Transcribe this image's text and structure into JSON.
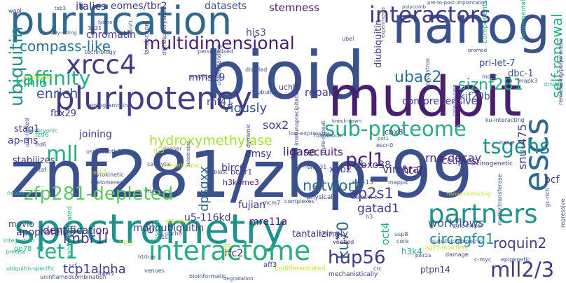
{
  "word_cloud": {
    "colors": {
      "navy": "#3b518b",
      "indigo": "#443983",
      "purple": "#481f70",
      "teal": "#2c718e",
      "blue": "#31688e",
      "cyan": "#21918c",
      "green": "#27ad81",
      "lime": "#5ec962",
      "yellow": "#aadc32",
      "light": "#c8e020",
      "dark": "#440154"
    },
    "words": [
      {
        "text": "znf281/zbp-99",
        "color": "navy"
      },
      {
        "text": "spectrometry",
        "color": "cyan"
      },
      {
        "text": "purification",
        "color": "blue"
      },
      {
        "text": "bioid",
        "color": "navy"
      },
      {
        "text": "mudpit",
        "color": "purple"
      },
      {
        "text": "nanog",
        "color": "navy"
      },
      {
        "text": "pluripotency",
        "color": "indigo"
      },
      {
        "text": "interactome",
        "color": "green"
      },
      {
        "text": "interactors",
        "color": "indigo"
      },
      {
        "text": "xrcc4",
        "color": "indigo"
      },
      {
        "text": "multidimensional",
        "color": "purple"
      },
      {
        "text": "partners",
        "color": "cyan"
      },
      {
        "text": "escs",
        "color": "blue"
      },
      {
        "text": "sub-proteome",
        "color": "green"
      },
      {
        "text": "zfp281-depleted",
        "color": "lime"
      },
      {
        "text": "affinity",
        "color": "green"
      },
      {
        "text": "compass-like",
        "color": "teal"
      },
      {
        "text": "mll",
        "color": "green"
      },
      {
        "text": "network",
        "color": "blue"
      },
      {
        "text": "ap2s1",
        "color": "indigo"
      },
      {
        "text": "mll2/3",
        "color": "indigo"
      },
      {
        "text": "tet1",
        "color": "green"
      },
      {
        "text": "ubiquitin",
        "color": "cyan"
      },
      {
        "text": "ku70",
        "color": "blue"
      },
      {
        "text": "tsgehs",
        "color": "cyan"
      },
      {
        "text": "pcl1",
        "color": "purple"
      },
      {
        "text": "hup56",
        "color": "indigo"
      },
      {
        "text": "hydroxymethylase",
        "color": "yellow"
      },
      {
        "text": "siznf281",
        "color": "green"
      },
      {
        "text": "ubac2",
        "color": "teal"
      },
      {
        "text": "self-renewal",
        "color": "green"
      },
      {
        "text": "circagfg1",
        "color": "cyan"
      },
      {
        "text": "roquin2",
        "color": "indigo"
      },
      {
        "text": "lmbr1l",
        "color": "indigo"
      },
      {
        "text": "tcp1alpha",
        "color": "indigo"
      },
      {
        "text": "gatad1",
        "color": "indigo"
      },
      {
        "text": "dpsgxx",
        "color": "blue"
      },
      {
        "text": "identification",
        "color": "purple"
      },
      {
        "text": "klhl6",
        "color": "green"
      },
      {
        "text": "enrich",
        "color": "navy"
      },
      {
        "text": "mms19",
        "color": "indigo"
      },
      {
        "text": "viously",
        "color": "navy"
      },
      {
        "text": "sox2",
        "color": "indigo"
      },
      {
        "text": "repair",
        "color": "indigo"
      },
      {
        "text": "rna-decay",
        "color": "purple"
      },
      {
        "text": "virotrap",
        "color": "indigo"
      },
      {
        "text": "workflows",
        "color": "navy"
      },
      {
        "text": "comprehensive",
        "color": "indigo"
      },
      {
        "text": "kif20b",
        "color": "navy"
      },
      {
        "text": "diubiquitin",
        "color": "indigo"
      },
      {
        "text": "his3",
        "color": "navy"
      },
      {
        "text": "datasets",
        "color": "navy"
      },
      {
        "text": "stemness",
        "color": "purple"
      },
      {
        "text": "italics",
        "color": "indigo"
      },
      {
        "text": "eomes/tbr2",
        "color": "indigo"
      },
      {
        "text": "chromatin",
        "color": "indigo"
      },
      {
        "text": "rnf41",
        "color": "navy"
      },
      {
        "text": "ligase",
        "color": "purple"
      },
      {
        "text": "recruits",
        "color": "purple"
      },
      {
        "text": "fbxo38",
        "color": "indigo"
      },
      {
        "text": "snu-475",
        "color": "indigo"
      },
      {
        "text": "pcf",
        "color": "indigo"
      },
      {
        "text": "xab2",
        "color": "indigo"
      },
      {
        "text": "emsy",
        "color": "indigo"
      },
      {
        "text": "birc6",
        "color": "indigo"
      },
      {
        "text": "fujian",
        "color": "indigo"
      },
      {
        "text": "mre11a",
        "color": "purple"
      },
      {
        "text": "u5-116kd",
        "color": "indigo"
      },
      {
        "text": "monoubiquitin",
        "color": "indigo"
      },
      {
        "text": "fbx29",
        "color": "indigo"
      },
      {
        "text": "joining",
        "color": "indigo"
      },
      {
        "text": "ap-ms",
        "color": "indigo"
      },
      {
        "text": "stag1",
        "color": "indigo"
      },
      {
        "text": "stabilizes",
        "color": "indigo"
      },
      {
        "text": "movio",
        "color": "navy"
      },
      {
        "text": "apoproteins",
        "color": "indigo"
      },
      {
        "text": "rfc2",
        "color": "purple"
      },
      {
        "text": "ctll",
        "color": "yellow"
      },
      {
        "text": "tantalizingly",
        "color": "indigo"
      },
      {
        "text": "ptpn14",
        "color": "indigo"
      },
      {
        "text": "aff3",
        "color": "indigo"
      },
      {
        "text": "h3k4me3",
        "color": "purple"
      },
      {
        "text": "bcar1",
        "color": "indigo"
      },
      {
        "text": "h3k4",
        "color": "green"
      },
      {
        "text": "oct4",
        "color": "green"
      },
      {
        "text": "uchl3",
        "color": "indigo"
      },
      {
        "text": "cbx8",
        "color": "indigo"
      },
      {
        "text": "ht-2",
        "color": "purple"
      },
      {
        "text": "occupies",
        "color": "indigo"
      },
      {
        "text": "pri-let-7",
        "color": "navy"
      },
      {
        "text": "dbc-1",
        "color": "navy"
      },
      {
        "text": "gp78",
        "color": "green"
      },
      {
        "text": "e3",
        "color": "indigo"
      },
      {
        "text": "ubiquitin-specific",
        "color": "green"
      },
      {
        "text": "hsp90",
        "color": "green"
      },
      {
        "text": "verified",
        "color": "purple"
      },
      {
        "text": "mechanistically",
        "color": "indigo"
      },
      {
        "text": "nanog-interacting",
        "color": "light"
      },
      {
        "text": "wapl",
        "color": "indigo"
      },
      {
        "text": "lysine",
        "color": "indigo"
      },
      {
        "text": "3q21",
        "color": "purple"
      },
      {
        "text": "technology",
        "color": "navy"
      },
      {
        "text": "reprogramming",
        "color": "navy"
      },
      {
        "text": "embryonic",
        "color": "green"
      },
      {
        "text": "replication",
        "color": "navy"
      },
      {
        "text": "telomeres",
        "color": "navy"
      },
      {
        "text": "cytokinetic",
        "color": "navy"
      },
      {
        "text": "integration",
        "color": "green"
      },
      {
        "text": "precise",
        "color": "green"
      },
      {
        "text": "scf",
        "color": "navy"
      },
      {
        "text": "uninflamedcombination",
        "color": "navy"
      },
      {
        "text": "inter2",
        "color": "indigo"
      },
      {
        "text": "venues",
        "color": "navy"
      },
      {
        "text": "bioinformatic",
        "color": "navy"
      },
      {
        "text": "degradation",
        "color": "navy"
      },
      {
        "text": "undifferentiated",
        "color": "light"
      },
      {
        "text": "complexes",
        "color": "navy"
      },
      {
        "text": "histone",
        "color": "navy"
      },
      {
        "text": "physically",
        "color": "indigo"
      },
      {
        "text": "triple-repeat",
        "color": "navy"
      },
      {
        "text": "landscape",
        "color": "navy"
      },
      {
        "text": "diphosphorylated",
        "color": "indigo"
      },
      {
        "text": "emt/fibrotic",
        "color": "indigo"
      },
      {
        "text": "demethylase",
        "color": "light"
      },
      {
        "text": "epiblast",
        "color": "navy"
      },
      {
        "text": "denser",
        "color": "navy"
      },
      {
        "text": "hunt",
        "color": "indigo"
      },
      {
        "text": "catalytic",
        "color": "navy"
      },
      {
        "text": "substrates",
        "color": "navy"
      },
      {
        "text": "low-expressors",
        "color": "navy"
      },
      {
        "text": "roadblock",
        "color": "navy"
      },
      {
        "text": "subunits",
        "color": "navy"
      },
      {
        "text": "ccna1",
        "color": "navy"
      },
      {
        "text": "sec-13",
        "color": "navy"
      },
      {
        "text": "mappit",
        "color": "navy"
      },
      {
        "text": "kinesin-6",
        "color": "navy"
      },
      {
        "text": "substoichiometric",
        "color": "navy"
      },
      {
        "text": "carcinogenetic",
        "color": "indigo"
      },
      {
        "text": "damage",
        "color": "indigo"
      },
      {
        "text": "methyltransferase",
        "color": "navy"
      },
      {
        "text": "zinc-finger",
        "color": "navy"
      },
      {
        "text": "driving",
        "color": "green"
      },
      {
        "text": "naive",
        "color": "indigo"
      },
      {
        "text": "remodeling/polymerase",
        "color": "indigo"
      },
      {
        "text": "fundamental",
        "color": "green"
      },
      {
        "text": "components",
        "color": "green"
      },
      {
        "text": "motif",
        "color": "navy"
      },
      {
        "text": "mapk3",
        "color": "navy"
      },
      {
        "text": "promed",
        "color": "navy"
      },
      {
        "text": "polycistron",
        "color": "navy"
      },
      {
        "text": "experiments",
        "color": "navy"
      },
      {
        "text": "understanding",
        "color": "navy"
      },
      {
        "text": "distilled",
        "color": "navy"
      },
      {
        "text": "personalised",
        "color": "navy"
      },
      {
        "text": "pre-to-post-implantation",
        "color": "navy"
      },
      {
        "text": "polycomb",
        "color": "navy"
      },
      {
        "text": "ubel",
        "color": "navy"
      },
      {
        "text": "escr-0",
        "color": "navy"
      },
      {
        "text": "pot1",
        "color": "navy"
      },
      {
        "text": "knock-down",
        "color": "navy"
      },
      {
        "text": "case-by-case",
        "color": "navy"
      },
      {
        "text": "ku-interacting",
        "color": "navy"
      },
      {
        "text": "znf131",
        "color": "navy"
      },
      {
        "text": "immunoprecipitation-mass",
        "color": "indigo"
      },
      {
        "text": "mcm7",
        "color": "navy"
      },
      {
        "text": "dynamic",
        "color": "navy"
      },
      {
        "text": "triply",
        "color": "light"
      },
      {
        "text": "efficient",
        "color": "light"
      },
      {
        "text": "ubch8",
        "color": "navy"
      },
      {
        "text": "l1s",
        "color": "indigo"
      },
      {
        "text": "h10cas",
        "color": "navy"
      },
      {
        "text": "xab2-associated",
        "color": "green"
      },
      {
        "text": "h3",
        "color": "navy"
      },
      {
        "text": "rfc3",
        "color": "light"
      },
      {
        "text": "usp9x/zbtb38",
        "color": "navy"
      },
      {
        "text": "ezh2",
        "color": "light"
      },
      {
        "text": "ncoa6",
        "color": "green"
      },
      {
        "text": "fzd6",
        "color": "green"
      },
      {
        "text": "htaf",
        "color": "navy"
      },
      {
        "text": "frd6",
        "color": "navy"
      },
      {
        "text": "usp8",
        "color": "navy"
      },
      {
        "text": "core",
        "color": "navy"
      },
      {
        "text": "c-myc",
        "color": "navy"
      },
      {
        "text": "epigenetic",
        "color": "navy"
      },
      {
        "text": "crc",
        "color": "navy"
      },
      {
        "text": "isg15-modifiers",
        "color": "light"
      },
      {
        "text": "repressive",
        "color": "navy"
      },
      {
        "text": "gc-rich",
        "color": "navy"
      },
      {
        "text": "polr2a",
        "color": "navy"
      },
      {
        "text": "ubc-linked",
        "color": "navy"
      },
      {
        "text": "tab3",
        "color": "navy"
      },
      {
        "text": "early-acting",
        "color": "navy"
      },
      {
        "text": "co-purified",
        "color": "light"
      },
      {
        "text": "ubmf1",
        "color": "navy"
      }
    ]
  }
}
